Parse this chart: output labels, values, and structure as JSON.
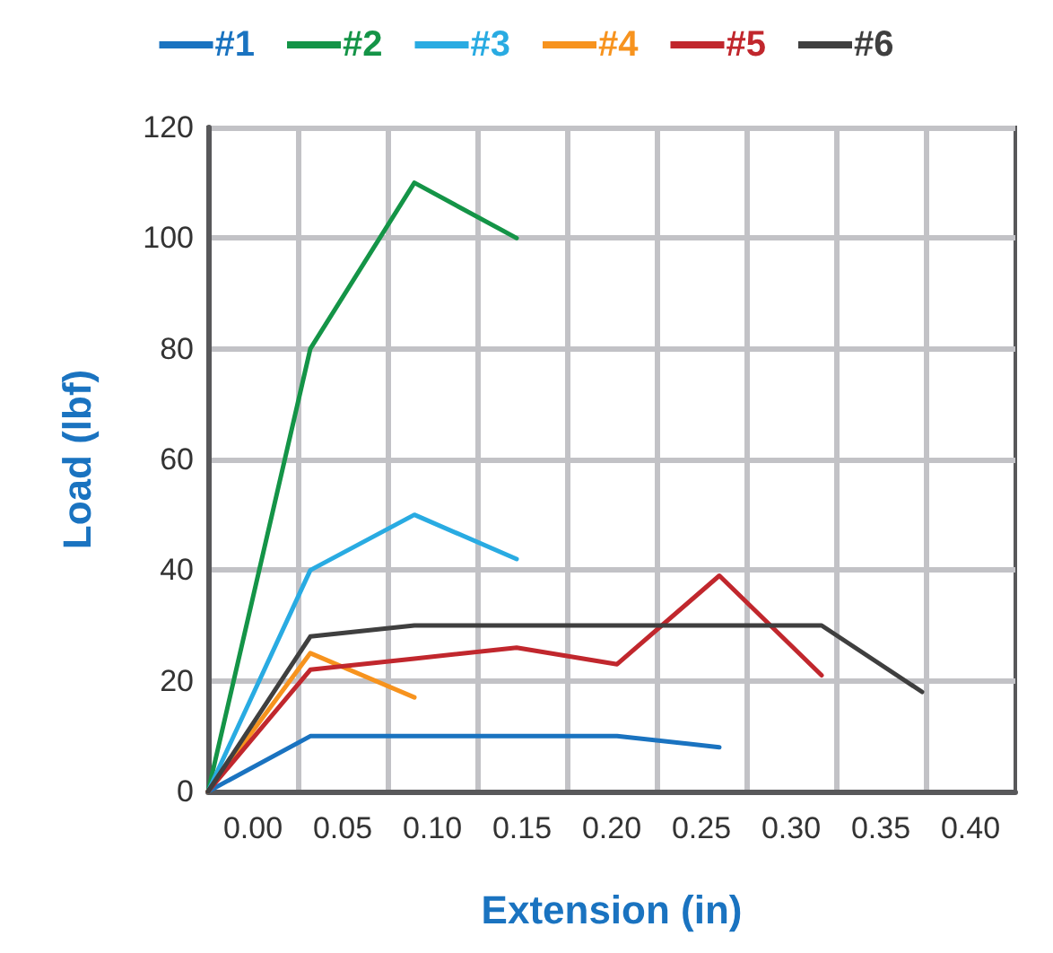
{
  "chart_data": {
    "type": "line",
    "xlabel": "Extension (in)",
    "ylabel": "Load (lbf)",
    "xlim": [
      -0.025,
      0.425
    ],
    "xticks": [
      {
        "value": 0,
        "label": "0.00"
      },
      {
        "value": 0.05,
        "label": "0.05"
      },
      {
        "value": 0.1,
        "label": "0.10"
      },
      {
        "value": 0.15,
        "label": "0.15"
      },
      {
        "value": 0.2,
        "label": "0.20"
      },
      {
        "value": 0.25,
        "label": "0.25"
      },
      {
        "value": 0.3,
        "label": "0.30"
      },
      {
        "value": 0.35,
        "label": "0.35"
      },
      {
        "value": 0.4,
        "label": "0.40"
      },
      {
        "value": 0.025,
        "label": null
      },
      {
        "value": 0.075,
        "label": null
      },
      {
        "value": 0.125,
        "label": null
      },
      {
        "value": 0.175,
        "label": null
      },
      {
        "value": 0.225,
        "label": null
      },
      {
        "value": 0.275,
        "label": null
      },
      {
        "value": 0.325,
        "label": null
      },
      {
        "value": 0.375,
        "label": null
      }
    ],
    "ylim": [
      0,
      120
    ],
    "yticks": [
      0,
      20,
      40,
      60,
      80,
      100,
      120
    ],
    "grid": true,
    "legend": "top",
    "marker": "none",
    "line_style": "solid",
    "series": [
      {
        "name": "#1",
        "color": "#1a73c0",
        "x": [
          -0.025,
          0.032,
          0.09,
          0.147,
          0.203,
          0.26
        ],
        "values": [
          0,
          10,
          10,
          10,
          10,
          8
        ]
      },
      {
        "name": "#2",
        "color": "#149447",
        "x": [
          -0.025,
          0.032,
          0.09,
          0.147
        ],
        "values": [
          0,
          80,
          110,
          100
        ]
      },
      {
        "name": "#3",
        "color": "#29abe2",
        "x": [
          -0.025,
          0.032,
          0.09,
          0.147
        ],
        "values": [
          0,
          40,
          50,
          42
        ]
      },
      {
        "name": "#4",
        "color": "#f7931e",
        "x": [
          -0.025,
          0.032,
          0.09
        ],
        "values": [
          0,
          25,
          17
        ]
      },
      {
        "name": "#5",
        "color": "#c1272d",
        "x": [
          -0.025,
          0.032,
          0.09,
          0.147,
          0.203,
          0.26,
          0.317
        ],
        "values": [
          0,
          22,
          24,
          26,
          23,
          39,
          21
        ]
      },
      {
        "name": "#6",
        "color": "#3f3f3f",
        "x": [
          -0.025,
          0.032,
          0.09,
          0.147,
          0.203,
          0.26,
          0.317,
          0.373
        ],
        "values": [
          0,
          28,
          30,
          30,
          30,
          30,
          30,
          18
        ]
      }
    ]
  }
}
